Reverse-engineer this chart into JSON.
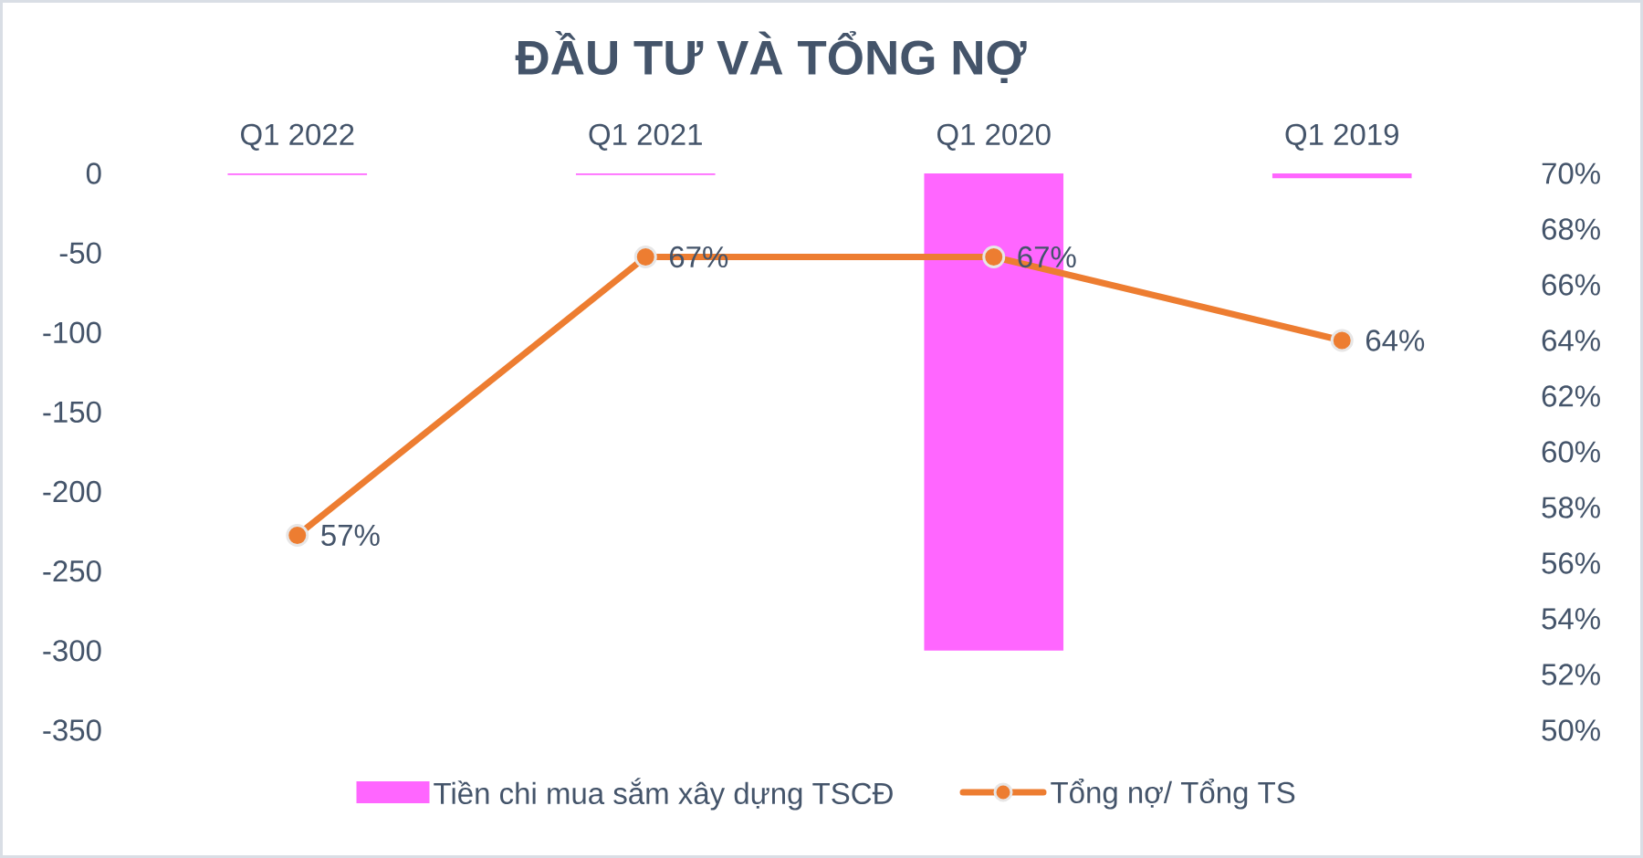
{
  "chart_data": {
    "type": "bar",
    "title": "ĐẦU TƯ VÀ TỔNG NỢ",
    "categories": [
      "Q1 2022",
      "Q1 2021",
      "Q1 2020",
      "Q1 2019"
    ],
    "series": [
      {
        "name": "Tiền chi mua sắm xây dựng TSCĐ",
        "color": "#ff66ff",
        "values": [
          -1,
          -1,
          -300,
          -3
        ]
      },
      {
        "name": "Tổng nợ/ Tổng TS",
        "type": "line",
        "axis": "y2",
        "color": "#ed7d31",
        "marker": "circle",
        "values": [
          57,
          67,
          67,
          64
        ],
        "value_labels": [
          "57%",
          "67%",
          "67%",
          "64%"
        ]
      }
    ],
    "ylim": [
      -350,
      0
    ],
    "yticks": [
      -350,
      -300,
      -250,
      -200,
      -150,
      -100,
      -50,
      0
    ],
    "y2lim": [
      50,
      70
    ],
    "y2ticks": [
      {
        "value": 50,
        "label": "50%"
      },
      {
        "value": 52,
        "label": "52%"
      },
      {
        "value": 54,
        "label": "54%"
      },
      {
        "value": 56,
        "label": "56%"
      },
      {
        "value": 58,
        "label": "58%"
      },
      {
        "value": 60,
        "label": "60%"
      },
      {
        "value": 62,
        "label": "62%"
      },
      {
        "value": 64,
        "label": "64%"
      },
      {
        "value": 66,
        "label": "66%"
      },
      {
        "value": 68,
        "label": "68%"
      },
      {
        "value": 70,
        "label": "70%"
      }
    ],
    "legend": "bottom",
    "grid": false
  }
}
